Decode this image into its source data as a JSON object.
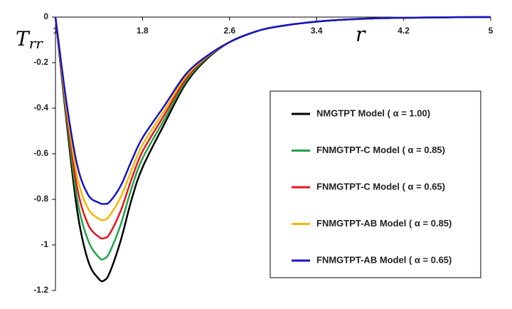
{
  "chart_data": {
    "type": "line",
    "ylabel": "T",
    "ylabel_subscript": "rr",
    "xlabel": "r",
    "x": [
      1,
      1.1,
      1.2,
      1.3,
      1.4,
      1.45,
      1.5,
      1.6,
      1.7,
      1.8,
      2.0,
      2.2,
      2.4,
      2.6,
      2.8,
      3.0,
      3.4,
      3.8,
      4.2,
      4.6,
      5
    ],
    "series": [
      {
        "name": "NMGTPT Model ( α = 1.00)",
        "color": "#000000",
        "values": [
          0,
          -0.45,
          -0.85,
          -1.07,
          -1.15,
          -1.155,
          -1.12,
          -0.98,
          -0.8,
          -0.66,
          -0.47,
          -0.29,
          -0.18,
          -0.11,
          -0.07,
          -0.045,
          -0.02,
          -0.008,
          -0.003,
          -0.001,
          0
        ]
      },
      {
        "name": "FNMGTPT-C Model ( α = 0.85)",
        "color": "#1fa34a",
        "values": [
          0,
          -0.43,
          -0.8,
          -0.98,
          -1.055,
          -1.06,
          -1.03,
          -0.91,
          -0.75,
          -0.62,
          -0.45,
          -0.28,
          -0.175,
          -0.11,
          -0.07,
          -0.045,
          -0.02,
          -0.008,
          -0.003,
          -0.001,
          0
        ]
      },
      {
        "name": "FNMGTPT-C Model ( α = 0.65)",
        "color": "#e8141c",
        "values": [
          0,
          -0.41,
          -0.75,
          -0.91,
          -0.965,
          -0.97,
          -0.95,
          -0.85,
          -0.71,
          -0.59,
          -0.43,
          -0.27,
          -0.172,
          -0.11,
          -0.07,
          -0.045,
          -0.02,
          -0.008,
          -0.003,
          -0.001,
          0
        ]
      },
      {
        "name": "FNMGTPT-AB Model ( α = 0.85)",
        "color": "#f5b800",
        "values": [
          0,
          -0.39,
          -0.7,
          -0.84,
          -0.885,
          -0.89,
          -0.87,
          -0.79,
          -0.67,
          -0.56,
          -0.41,
          -0.26,
          -0.17,
          -0.11,
          -0.07,
          -0.045,
          -0.02,
          -0.008,
          -0.003,
          -0.001,
          0
        ]
      },
      {
        "name": "FNMGTPT-AB Model ( α = 0.65)",
        "color": "#1414c8",
        "values": [
          0,
          -0.37,
          -0.65,
          -0.78,
          -0.815,
          -0.82,
          -0.81,
          -0.74,
          -0.63,
          -0.53,
          -0.39,
          -0.25,
          -0.168,
          -0.11,
          -0.07,
          -0.045,
          -0.02,
          -0.008,
          -0.003,
          -0.001,
          0
        ]
      }
    ],
    "xlim": [
      1,
      5
    ],
    "xticks": [
      1,
      1.8,
      2.6,
      3.4,
      4.2,
      5
    ],
    "ylim": [
      -1.2,
      0
    ],
    "yticks": [
      0,
      -0.2,
      -0.4,
      -0.6,
      -0.8,
      -1,
      -1.2
    ],
    "legend": "right",
    "grid": false
  }
}
